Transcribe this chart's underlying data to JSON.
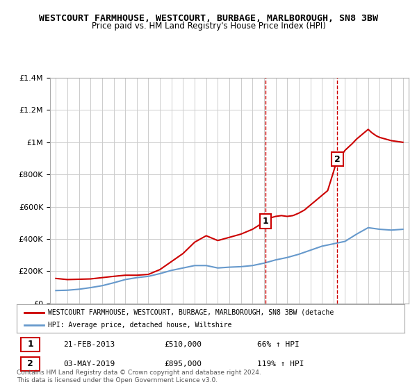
{
  "title": "WESTCOURT FARMHOUSE, WESTCOURT, BURBAGE, MARLBOROUGH, SN8 3BW",
  "subtitle": "Price paid vs. HM Land Registry's House Price Index (HPI)",
  "legend_red": "WESTCOURT FARMHOUSE, WESTCOURT, BURBAGE, MARLBOROUGH, SN8 3BW (detache",
  "legend_blue": "HPI: Average price, detached house, Wiltshire",
  "footnote": "Contains HM Land Registry data © Crown copyright and database right 2024.\nThis data is licensed under the Open Government Licence v3.0.",
  "transaction1_label": "1",
  "transaction1_date": "21-FEB-2013",
  "transaction1_price": "£510,000",
  "transaction1_hpi": "66% ↑ HPI",
  "transaction1_year": 2013.12,
  "transaction1_value": 510000,
  "transaction2_label": "2",
  "transaction2_date": "03-MAY-2019",
  "transaction2_price": "£895,000",
  "transaction2_hpi": "119% ↑ HPI",
  "transaction2_year": 2019.34,
  "transaction2_value": 895000,
  "ylim": [
    0,
    1400000
  ],
  "xlim": [
    1994.5,
    2025.5
  ],
  "red_color": "#cc0000",
  "blue_color": "#6699cc",
  "dashed_color": "#cc0000",
  "background_color": "#ffffff",
  "grid_color": "#cccccc",
  "years_red": [
    1995,
    1996,
    1997,
    1998,
    1999,
    2000,
    2001,
    2002,
    2003,
    2004,
    2005,
    2006,
    2007,
    2008,
    2009,
    2010,
    2011,
    2012,
    2013.12,
    2013.5,
    2014,
    2014.5,
    2015,
    2015.5,
    2016,
    2016.5,
    2017,
    2017.5,
    2018,
    2018.5,
    2019.34,
    2019.7,
    2020,
    2020.3,
    2020.6,
    2021,
    2021.5,
    2022,
    2022.3,
    2022.7,
    2023,
    2023.5,
    2024,
    2024.5,
    2025
  ],
  "values_red": [
    155000,
    148000,
    150000,
    152000,
    160000,
    168000,
    175000,
    175000,
    180000,
    210000,
    260000,
    310000,
    380000,
    420000,
    390000,
    410000,
    430000,
    460000,
    510000,
    530000,
    540000,
    545000,
    540000,
    545000,
    560000,
    580000,
    610000,
    640000,
    670000,
    700000,
    895000,
    920000,
    950000,
    970000,
    990000,
    1020000,
    1050000,
    1080000,
    1060000,
    1040000,
    1030000,
    1020000,
    1010000,
    1005000,
    1000000
  ],
  "years_blue": [
    1995,
    1996,
    1997,
    1998,
    1999,
    2000,
    2001,
    2002,
    2003,
    2004,
    2005,
    2006,
    2007,
    2008,
    2009,
    2010,
    2011,
    2012,
    2013,
    2014,
    2015,
    2016,
    2017,
    2018,
    2019,
    2020,
    2021,
    2022,
    2023,
    2024,
    2025
  ],
  "values_blue": [
    80000,
    82000,
    88000,
    98000,
    110000,
    128000,
    148000,
    160000,
    168000,
    185000,
    205000,
    220000,
    235000,
    235000,
    220000,
    225000,
    228000,
    235000,
    250000,
    270000,
    285000,
    305000,
    330000,
    355000,
    370000,
    385000,
    430000,
    470000,
    460000,
    455000,
    460000
  ]
}
